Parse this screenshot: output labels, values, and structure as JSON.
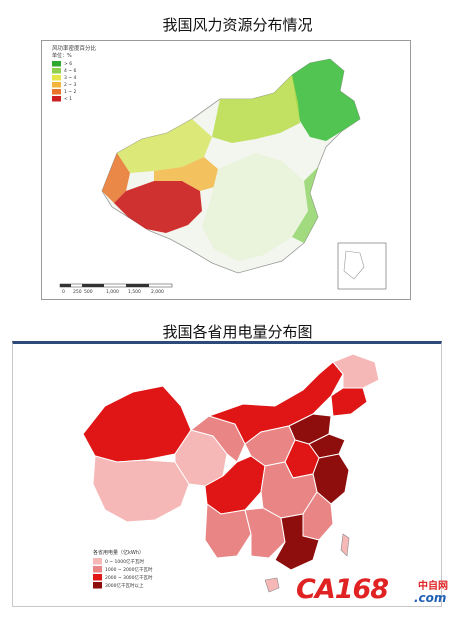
{
  "titles": {
    "wind": "我国风力资源分布情况",
    "power": "我国各省用电量分布图"
  },
  "wind_map": {
    "legend_title": "风功率密度百分比",
    "legend_unit": "单位：%",
    "legend_items": [
      "> 6",
      "4 ~ 6",
      "3 ~ 4",
      "2 ~ 3",
      "1 ~ 2",
      "< 1"
    ],
    "legend_colors": [
      "#2ea82e",
      "#8fd14f",
      "#e6e64a",
      "#f2b43a",
      "#e8742a",
      "#cc1f1f"
    ],
    "scale_labels": [
      "0",
      "250",
      "500",
      "1,000",
      "1,500",
      "2,000"
    ]
  },
  "power_map": {
    "legend_title": "各省用电量（亿kWh）",
    "legend_items": [
      "0 ~ 1000亿千瓦时",
      "1000 ~ 2000亿千瓦时",
      "2000 ~ 3000亿千瓦时",
      "3000亿千瓦时以上"
    ],
    "legend_colors": [
      "#f6b7b7",
      "#e98585",
      "#e01616",
      "#8e0e0e"
    ]
  },
  "logo": {
    "brand": "CA168",
    "chinese": "中自网",
    "domain": ".com"
  }
}
